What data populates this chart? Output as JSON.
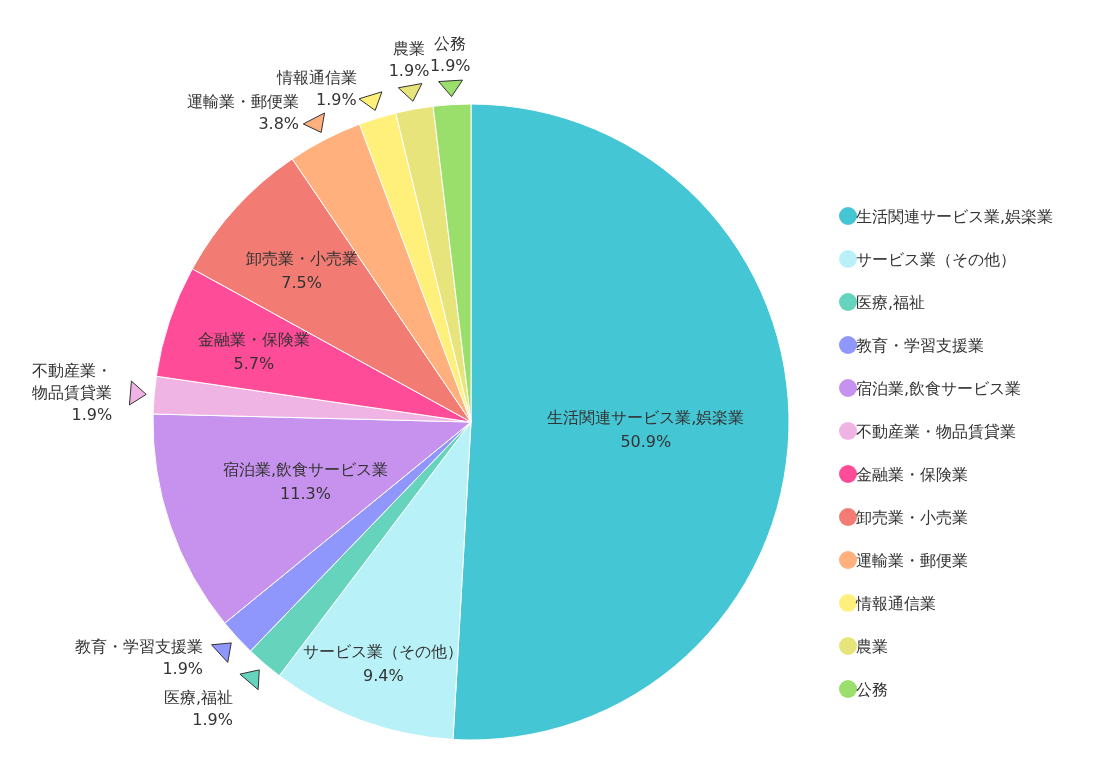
{
  "chart_data": {
    "type": "pie",
    "categories": [
      "生活関連サービス業,娯楽業",
      "サービス業（その他）",
      "医療,福祉",
      "教育・学習支援業",
      "宿泊業,飲食サービス業",
      "不動産業・物品賃貸業",
      "金融業・保険業",
      "卸売業・小売業",
      "運輸業・郵便業",
      "情報通信業",
      "農業",
      "公務"
    ],
    "values": [
      50.9,
      9.4,
      1.9,
      1.9,
      11.3,
      1.9,
      5.7,
      7.5,
      3.8,
      1.9,
      1.9,
      1.9
    ],
    "colors": [
      "#45c6d4",
      "#b8f2f8",
      "#66d4bc",
      "#8f96fc",
      "#c792ee",
      "#f0b4e4",
      "#ff4c98",
      "#f27c74",
      "#ffb07c",
      "#fff07c",
      "#e8e47c",
      "#9ade6c"
    ],
    "data_labels": true,
    "value_labels": [
      "50.9%",
      "9.4%",
      "1.9%",
      "1.9%",
      "11.3%",
      "1.9%",
      "5.7%",
      "7.5%",
      "3.8%",
      "1.9%",
      "1.9%",
      "1.9%"
    ],
    "legend": "right"
  }
}
